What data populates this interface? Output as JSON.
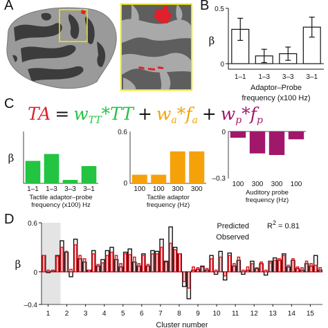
{
  "panels": {
    "a": "A",
    "b": "B",
    "c": "C",
    "d": "D"
  },
  "colors": {
    "tactile": "#22c441",
    "adaptor": "#f5a20a",
    "probe": "#a1176a",
    "predicted": "#e0202a",
    "observed": "#111111",
    "brain_dark": "#3c3c3c",
    "brain_light": "#9a9a9a"
  },
  "equation": {
    "lhs": "TA",
    "eq": "=",
    "w1": "w",
    "w1_sub": "TT",
    "t1": "*TT",
    "plus1": "+",
    "w2": "w",
    "w2_sub": "a",
    "t2": "*f",
    "t2_sub": "a",
    "plus2": "+",
    "w3": "w",
    "w3_sub": "p",
    "t3": "*f",
    "t3_sub": "p"
  },
  "chart_data": [
    {
      "id": "B",
      "type": "bar",
      "categories": [
        "1–1",
        "1–3",
        "3–3",
        "3–1"
      ],
      "values": [
        0.31,
        0.07,
        0.09,
        0.33
      ],
      "errors": [
        0.1,
        0.06,
        0.06,
        0.09
      ],
      "ylim": [
        -0.05,
        0.5
      ],
      "yticks": [
        "0",
        "0.5"
      ],
      "ylabel": "β",
      "xlabel_line1": "Adaptor–Probe",
      "xlabel_line2": "frequency (x100 Hz)"
    },
    {
      "id": "C1",
      "type": "bar",
      "categories": [
        "1–1",
        "1–3",
        "3–3",
        "3–1"
      ],
      "values": [
        0.26,
        0.34,
        0.04,
        0.2
      ],
      "ylim": [
        0,
        0.6
      ],
      "ylabel": "β",
      "xlabel_line1": "Tactile adaptor–probe",
      "xlabel_line2": "frequency (x100) Hz"
    },
    {
      "id": "C2",
      "type": "bar",
      "categories": [
        "100",
        "100",
        "300",
        "300"
      ],
      "values": [
        0.1,
        0.1,
        0.37,
        0.37
      ],
      "ylim": [
        0,
        0.6
      ],
      "yticks": [
        "0",
        "0.6"
      ],
      "xlabel_line1": "Tactile adaptor",
      "xlabel_line2": "frequency (Hz)"
    },
    {
      "id": "C3",
      "type": "bar",
      "categories": [
        "100",
        "300",
        "300",
        "100"
      ],
      "values": [
        -0.04,
        -0.14,
        -0.15,
        -0.05
      ],
      "ylim": [
        -0.3,
        0
      ],
      "yticks": [
        "0",
        "–0.3"
      ],
      "xlabel_line1": "Auditory probe",
      "xlabel_line2": "frequency (Hz)"
    },
    {
      "id": "D",
      "type": "bar",
      "ylim": [
        -0.4,
        0.6
      ],
      "yticks": [
        "0.6",
        "0",
        "–0.4"
      ],
      "ylabel": "β",
      "xlabel": "Cluster number",
      "xticks": [
        "1",
        "2",
        "3",
        "4",
        "5",
        "6",
        "7",
        "8",
        "9",
        "10",
        "11",
        "12",
        "13",
        "14",
        "15"
      ],
      "legend": [
        "Predicted",
        "Observed"
      ],
      "annotation": "R",
      "annotation_sup": "2",
      "annotation_value": "= 0.81",
      "predicted": [
        0.2,
        0.02,
        0.02,
        0.19,
        0.3,
        0.25,
        0.03,
        0.33,
        0.2,
        0.16,
        0.02,
        0.22,
        0.09,
        0.11,
        0.2,
        0.24,
        0.2,
        0.1,
        0.22,
        0.21,
        0.18,
        0.1,
        0.2,
        0.09,
        0.22,
        0.22,
        0.3,
        0.12,
        0.35,
        0.27,
        0.22,
        -0.12,
        -0.2,
        0.06,
        0.05,
        0.06,
        0.04,
        0.16,
        0.02,
        0.18,
        -0.05,
        0.2,
        0.1,
        0.18,
        0.02,
        0.06,
        0.1,
        0.05,
        0.12,
        0.02,
        0.11,
        0.14,
        0.16,
        0.2,
        0.08,
        0.16,
        0.06,
        0.05,
        0.13,
        0.1,
        0.08,
        0.05
      ],
      "observed": [
        0.2,
        -0.01,
        0.01,
        0.2,
        0.38,
        0.24,
        -0.06,
        0.4,
        0.16,
        0.12,
        0.02,
        0.26,
        0.07,
        0.15,
        0.26,
        0.3,
        0.15,
        0.06,
        0.24,
        0.28,
        0.12,
        0.07,
        0.22,
        0.07,
        0.26,
        0.25,
        0.4,
        0.13,
        0.55,
        0.3,
        0.22,
        -0.18,
        -0.33,
        0.02,
        0.03,
        0.07,
        0.02,
        0.2,
        -0.03,
        0.25,
        -0.1,
        0.23,
        0.07,
        0.14,
        -0.03,
        0.02,
        0.13,
        0.04,
        0.1,
        -0.04,
        0.13,
        0.17,
        0.14,
        0.22,
        0.06,
        0.14,
        0.04,
        0.02,
        0.1,
        0.07,
        0.2,
        0.02
      ]
    }
  ]
}
